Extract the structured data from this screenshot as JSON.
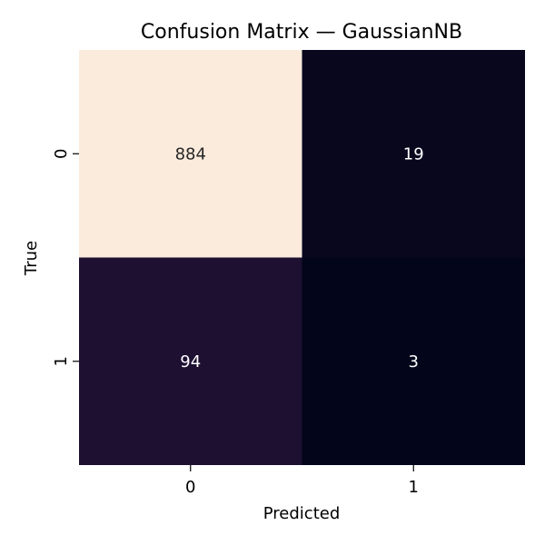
{
  "chart_data": {
    "type": "heatmap",
    "title": "Confusion Matrix — GaussianNB",
    "xlabel": "Predicted",
    "ylabel": "True",
    "x_categories": [
      "0",
      "1"
    ],
    "y_categories": [
      "0",
      "1"
    ],
    "values": [
      [
        884,
        19
      ],
      [
        94,
        3
      ]
    ],
    "colormap": "rocket",
    "colorbar": false,
    "annotations": true
  },
  "colors": {
    "high": "#faebdd",
    "low": "#03051a",
    "text_on_light": "#262626",
    "text_on_dark": "#ffffff"
  }
}
